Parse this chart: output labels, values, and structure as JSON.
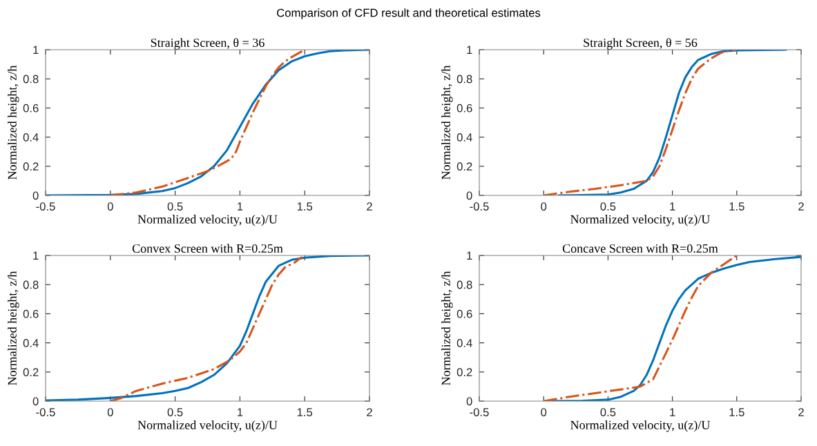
{
  "chart_data": [
    {
      "type": "line",
      "title": "Straight Screen, θ = 36",
      "xlabel": "Normalized velocity, u(z)/U",
      "ylabel": "Normalized height, z/h",
      "annotations": [
        "Comparison of CFD result and theoretical estimates"
      ],
      "xlim": [
        -0.5,
        2
      ],
      "ylim": [
        0,
        1
      ],
      "xticks": [
        -0.5,
        0,
        0.5,
        1,
        1.5,
        2
      ],
      "yticks": [
        0,
        0.2,
        0.4,
        0.6,
        0.8,
        1
      ],
      "series": [
        {
          "color": "#0072bd",
          "line_style": "solid",
          "x": [
            -0.5,
            0,
            0.2,
            0.4,
            0.5,
            0.6,
            0.7,
            0.8,
            0.9,
            1.0,
            1.1,
            1.2,
            1.3,
            1.4,
            1.5,
            1.6,
            1.7,
            1.8,
            2.0
          ],
          "values": [
            0,
            0.003,
            0.01,
            0.03,
            0.05,
            0.085,
            0.13,
            0.2,
            0.31,
            0.47,
            0.63,
            0.76,
            0.86,
            0.92,
            0.955,
            0.975,
            0.99,
            0.995,
            1.0
          ]
        },
        {
          "color": "#d95319",
          "line_style": "dashdot",
          "x": [
            0,
            0.2,
            0.4,
            0.5,
            0.6,
            0.76,
            0.85,
            0.93,
            0.97,
            1.0,
            1.05,
            1.1,
            1.15,
            1.2,
            1.25,
            1.3,
            1.35,
            1.4,
            1.48
          ],
          "values": [
            0,
            0.02,
            0.06,
            0.09,
            0.12,
            0.17,
            0.21,
            0.25,
            0.3,
            0.37,
            0.47,
            0.57,
            0.66,
            0.75,
            0.82,
            0.88,
            0.92,
            0.95,
            0.99
          ]
        }
      ]
    },
    {
      "type": "line",
      "title": "Straight Screen, θ = 56",
      "xlabel": "Normalized velocity, u(z)/U",
      "ylabel": "Normalized height, z/h",
      "xlim": [
        -0.5,
        2
      ],
      "ylim": [
        0,
        1
      ],
      "xticks": [
        -0.5,
        0,
        0.5,
        1,
        1.5,
        2
      ],
      "yticks": [
        0,
        0.2,
        0.4,
        0.6,
        0.8,
        1
      ],
      "series": [
        {
          "color": "#0072bd",
          "line_style": "solid",
          "x": [
            0.12,
            0.3,
            0.5,
            0.6,
            0.7,
            0.8,
            0.85,
            0.9,
            0.95,
            1.0,
            1.05,
            1.1,
            1.15,
            1.2,
            1.3,
            1.4,
            1.5,
            1.88
          ],
          "values": [
            0,
            0.002,
            0.006,
            0.02,
            0.045,
            0.1,
            0.16,
            0.26,
            0.4,
            0.55,
            0.7,
            0.81,
            0.88,
            0.93,
            0.97,
            0.99,
            0.995,
            1.0
          ]
        },
        {
          "color": "#d95319",
          "line_style": "dashdot",
          "x": [
            0,
            0.2,
            0.4,
            0.6,
            0.8,
            0.85,
            0.9,
            0.95,
            1.0,
            1.05,
            1.1,
            1.15,
            1.2,
            1.3,
            1.38,
            1.45,
            1.5
          ],
          "values": [
            0,
            0.025,
            0.045,
            0.07,
            0.1,
            0.13,
            0.2,
            0.32,
            0.45,
            0.58,
            0.7,
            0.8,
            0.87,
            0.94,
            0.98,
            0.995,
            1.0
          ]
        }
      ]
    },
    {
      "type": "line",
      "title": "Convex Screen with R=0.25m",
      "xlabel": "Normalized velocity, u(z)/U",
      "ylabel": "Normalized height, z/h",
      "xlim": [
        -0.5,
        2
      ],
      "ylim": [
        0,
        1
      ],
      "xticks": [
        -0.5,
        0,
        0.5,
        1,
        1.5,
        2
      ],
      "yticks": [
        0,
        0.2,
        0.4,
        0.6,
        0.8,
        1
      ],
      "series": [
        {
          "color": "#0072bd",
          "line_style": "solid",
          "x": [
            -0.5,
            -0.25,
            0,
            0.2,
            0.4,
            0.5,
            0.6,
            0.7,
            0.8,
            0.9,
            1.0,
            1.05,
            1.1,
            1.15,
            1.2,
            1.3,
            1.4,
            1.5,
            1.7,
            2.0
          ],
          "values": [
            0.005,
            0.01,
            0.022,
            0.035,
            0.055,
            0.07,
            0.09,
            0.13,
            0.18,
            0.26,
            0.38,
            0.48,
            0.6,
            0.72,
            0.82,
            0.93,
            0.97,
            0.985,
            0.997,
            1.0
          ]
        },
        {
          "color": "#d95319",
          "line_style": "dashdot",
          "x": [
            0,
            0.08,
            0.15,
            0.2,
            0.4,
            0.6,
            0.8,
            0.92,
            1.0,
            1.05,
            1.1,
            1.15,
            1.2,
            1.25,
            1.3,
            1.35,
            1.42,
            1.48
          ],
          "values": [
            0,
            0.02,
            0.05,
            0.07,
            0.12,
            0.16,
            0.22,
            0.28,
            0.34,
            0.4,
            0.5,
            0.6,
            0.7,
            0.8,
            0.87,
            0.92,
            0.95,
            0.99
          ]
        }
      ]
    },
    {
      "type": "line",
      "title": "Concave Screen with R=0.25m",
      "xlabel": "Normalized velocity, u(z)/U",
      "ylabel": "Normalized height, z/h",
      "xlim": [
        -0.5,
        2
      ],
      "ylim": [
        0,
        1
      ],
      "xticks": [
        -0.5,
        0,
        0.5,
        1,
        1.5,
        2
      ],
      "yticks": [
        0,
        0.2,
        0.4,
        0.6,
        0.8,
        1
      ],
      "series": [
        {
          "color": "#0072bd",
          "line_style": "solid",
          "x": [
            0.03,
            0.3,
            0.5,
            0.6,
            0.7,
            0.75,
            0.8,
            0.85,
            0.9,
            0.95,
            1.0,
            1.05,
            1.1,
            1.2,
            1.3,
            1.4,
            1.5,
            1.6,
            1.8,
            2.0
          ],
          "values": [
            0,
            0.002,
            0.01,
            0.03,
            0.07,
            0.11,
            0.18,
            0.28,
            0.4,
            0.52,
            0.62,
            0.7,
            0.76,
            0.84,
            0.88,
            0.91,
            0.935,
            0.955,
            0.975,
            0.99
          ]
        },
        {
          "color": "#d95319",
          "line_style": "dashdot",
          "x": [
            0,
            0.2,
            0.4,
            0.6,
            0.75,
            0.85,
            0.9,
            0.95,
            1.0,
            1.05,
            1.1,
            1.15,
            1.2,
            1.3,
            1.4,
            1.5
          ],
          "values": [
            0,
            0.03,
            0.055,
            0.08,
            0.1,
            0.15,
            0.24,
            0.33,
            0.42,
            0.52,
            0.62,
            0.71,
            0.79,
            0.88,
            0.94,
            1.0
          ]
        }
      ]
    }
  ]
}
